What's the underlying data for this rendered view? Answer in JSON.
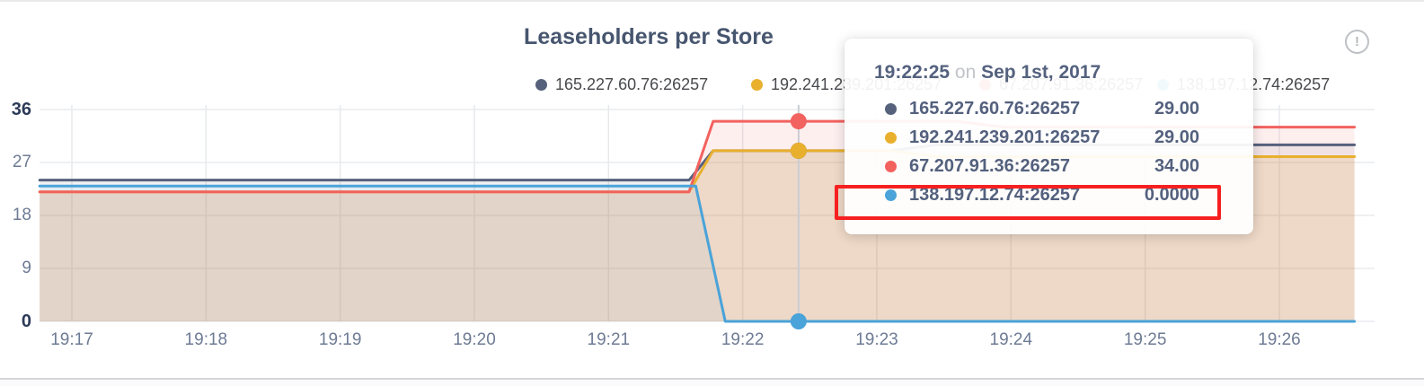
{
  "panel": {
    "title": "Leaseholders per Store"
  },
  "info_icon": {
    "glyph": "!"
  },
  "legend": {
    "items": [
      {
        "label": "165.227.60.76:26257",
        "color": "#56617c"
      },
      {
        "label": "192.241.239.201:26257",
        "color": "#e9b02e"
      },
      {
        "label": "67.207.91.36:26257",
        "color": "#f2625f"
      },
      {
        "label": "138.197.12.74:26257",
        "color": "#4aa3d9"
      }
    ]
  },
  "tooltip": {
    "time": "19:22:25",
    "conjunction": "on",
    "date": "Sep 1st, 2017",
    "rows": [
      {
        "label": "165.227.60.76:26257",
        "value": "29.00",
        "color": "#56617c",
        "highlighted": false
      },
      {
        "label": "192.241.239.201:26257",
        "value": "29.00",
        "color": "#e9b02e",
        "highlighted": false
      },
      {
        "label": "67.207.91.36:26257",
        "value": "34.00",
        "color": "#f2625f",
        "highlighted": false
      },
      {
        "label": "138.197.12.74:26257",
        "value": "0.0000",
        "color": "#4aa3d9",
        "highlighted": true
      }
    ]
  },
  "chart_data": {
    "type": "area",
    "title": "Leaseholders per Store",
    "x_ticks": [
      "19:17",
      "19:18",
      "19:19",
      "19:20",
      "19:21",
      "19:22",
      "19:23",
      "19:24",
      "19:25",
      "19:26"
    ],
    "y_ticks": [
      0,
      9,
      18,
      27,
      36
    ],
    "ylim": [
      0,
      36
    ],
    "x_unit": "minutes since 19:17",
    "grid": true,
    "legend_position": "top",
    "series": [
      {
        "name": "165.227.60.76:26257",
        "color": "#56617c",
        "fill_opacity": 0.09,
        "points": [
          [
            -0.24,
            24
          ],
          [
            4.6,
            24
          ],
          [
            4.78,
            29
          ],
          [
            6.1,
            29
          ],
          [
            6.45,
            30
          ],
          [
            9.56,
            30
          ]
        ]
      },
      {
        "name": "192.241.239.201:26257",
        "color": "#e9b02e",
        "fill_opacity": 0.16,
        "points": [
          [
            -0.24,
            22
          ],
          [
            4.6,
            22
          ],
          [
            4.78,
            29
          ],
          [
            6.1,
            29
          ],
          [
            6.45,
            28
          ],
          [
            9.56,
            28
          ]
        ]
      },
      {
        "name": "67.207.91.36:26257",
        "color": "#f2625f",
        "fill_opacity": 0.1,
        "points": [
          [
            -0.24,
            22
          ],
          [
            4.6,
            22
          ],
          [
            4.78,
            34
          ],
          [
            6.6,
            34
          ],
          [
            6.95,
            33
          ],
          [
            9.56,
            33
          ]
        ]
      },
      {
        "name": "138.197.12.74:26257",
        "color": "#4aa3d9",
        "fill_opacity": 0.07,
        "points": [
          [
            -0.24,
            23
          ],
          [
            4.65,
            23
          ],
          [
            4.87,
            0
          ],
          [
            9.56,
            0
          ]
        ]
      }
    ],
    "hover": {
      "label": "19:22:25",
      "date": "Sep 1st, 2017",
      "time_minutes": 5.4167,
      "values": [
        {
          "series": "165.227.60.76:26257",
          "value": 29.0
        },
        {
          "series": "192.241.239.201:26257",
          "value": 29.0
        },
        {
          "series": "67.207.91.36:26257",
          "value": 34.0
        },
        {
          "series": "138.197.12.74:26257",
          "value": 0.0
        }
      ]
    }
  }
}
